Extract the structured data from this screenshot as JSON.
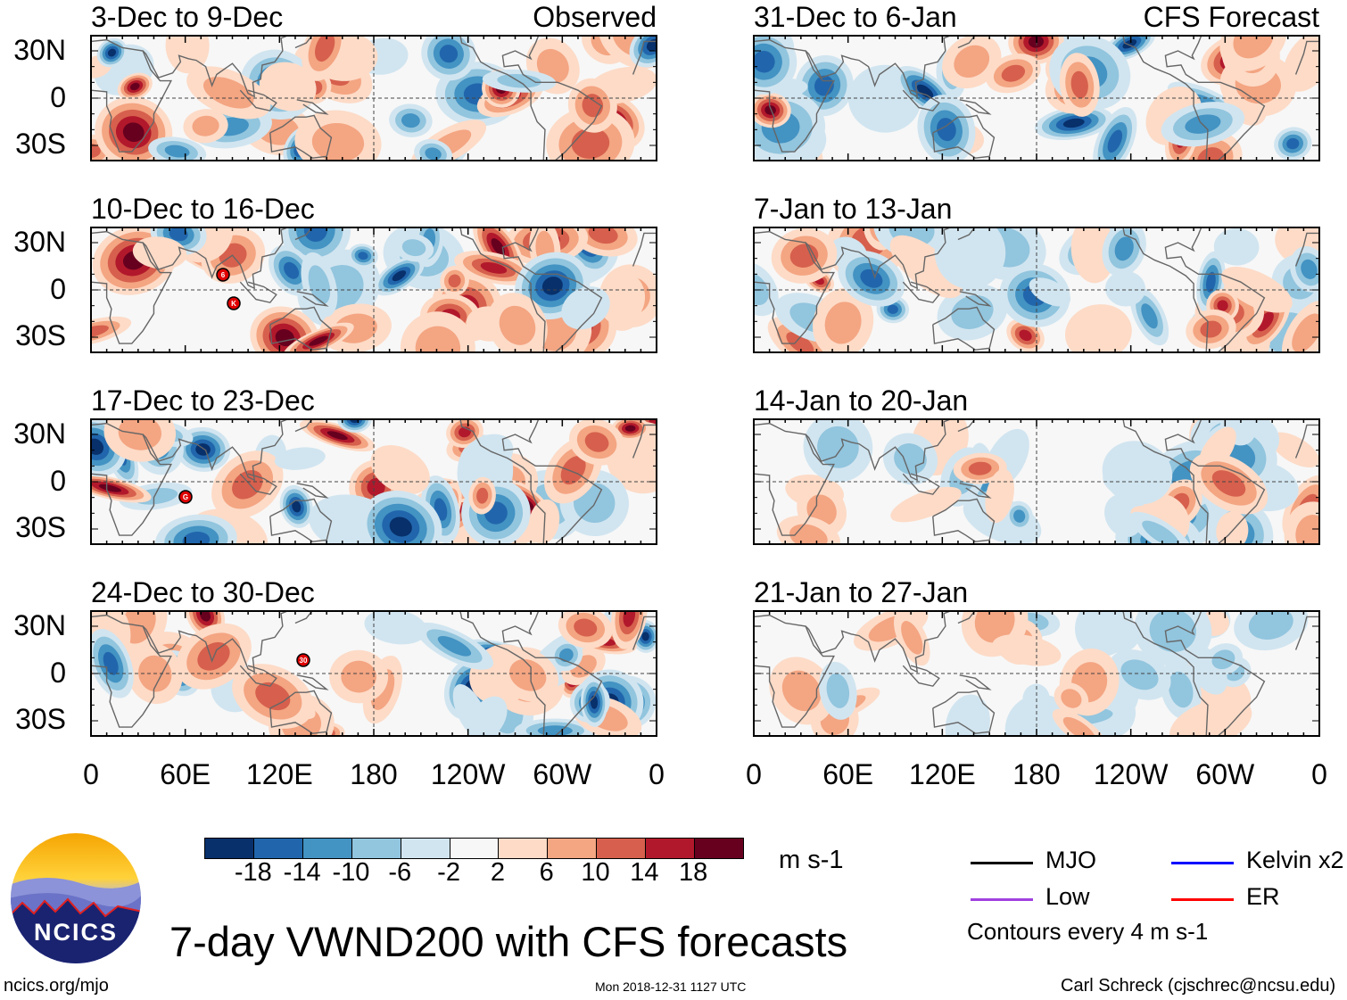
{
  "panels": {
    "left_header": "Observed",
    "right_header": "CFS Forecast",
    "left_titles": [
      "3-Dec to 9-Dec",
      "10-Dec to 16-Dec",
      "17-Dec to 23-Dec",
      "24-Dec to 30-Dec"
    ],
    "right_titles": [
      "31-Dec to 6-Jan",
      "7-Jan to 13-Jan",
      "14-Jan to 20-Jan",
      "21-Jan to 27-Jan"
    ],
    "lat_labels": [
      "30N",
      "0",
      "30S"
    ],
    "lon_labels": [
      "0",
      "60E",
      "120E",
      "180",
      "120W",
      "60W",
      "0"
    ],
    "storm_markers": [
      [
        "6",
        "K"
      ],
      [
        "G"
      ],
      [
        "30"
      ]
    ]
  },
  "colorbar": {
    "colors": [
      "#08306b",
      "#2166ac",
      "#4393c3",
      "#92c5de",
      "#d1e5f0",
      "#f7f7f7",
      "#fddbc7",
      "#f4a582",
      "#d6604d",
      "#b2182b",
      "#67001f"
    ],
    "labels": [
      "-18",
      "-14",
      "-10",
      "-6",
      "-2",
      "2",
      "6",
      "10",
      "14",
      "18"
    ],
    "units": "m s-1"
  },
  "legend": {
    "items": [
      {
        "label": "MJO",
        "color": "#000000"
      },
      {
        "label": "Kelvin x2",
        "color": "#0000ff"
      },
      {
        "label": "Low",
        "color": "#a040e0"
      },
      {
        "label": "ER",
        "color": "#ff0000"
      }
    ],
    "contours_note": "Contours every 4 m s-1"
  },
  "logo_text": "NCICS",
  "title": "7-day VWND200 with CFS forecasts",
  "footer": {
    "left": "ncics.org/mjo",
    "center": "Mon 2018-12-31 1127 UTC",
    "right": "Carl Schreck (cjschrec@ncsu.edu)"
  }
}
